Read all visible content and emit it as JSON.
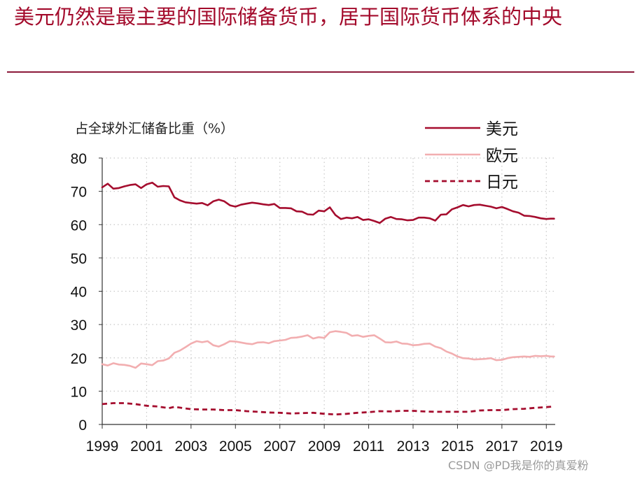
{
  "page": {
    "title": "美元仍然是最主要的国际储备货币，居于国际货币体系的中央",
    "watermark": "CSDN @PD我是你的真爱粉"
  },
  "chart_data": {
    "type": "line",
    "ylabel": "占全球外汇储备比重（%）",
    "ylim": [
      0,
      80
    ],
    "yticks": [
      0,
      10,
      20,
      30,
      40,
      50,
      60,
      70,
      80
    ],
    "xlim": [
      1999,
      2019.4
    ],
    "xticks": [
      "1999",
      "2001",
      "2003",
      "2005",
      "2007",
      "2009",
      "2011",
      "2013",
      "2015",
      "2017",
      "2019"
    ],
    "grid": true,
    "legend_position": "top-right",
    "series": [
      {
        "name": "美元",
        "color": "#a50d2e",
        "style": "solid",
        "points": [
          [
            1999.0,
            71.2
          ],
          [
            1999.25,
            72.3
          ],
          [
            1999.5,
            70.8
          ],
          [
            1999.75,
            71.0
          ],
          [
            2000.0,
            71.5
          ],
          [
            2000.25,
            71.9
          ],
          [
            2000.5,
            72.1
          ],
          [
            2000.75,
            71.0
          ],
          [
            2001.0,
            72.1
          ],
          [
            2001.25,
            72.6
          ],
          [
            2001.5,
            71.4
          ],
          [
            2001.75,
            71.6
          ],
          [
            2002.0,
            71.5
          ],
          [
            2002.25,
            68.2
          ],
          [
            2002.5,
            67.3
          ],
          [
            2002.75,
            66.7
          ],
          [
            2003.0,
            66.5
          ],
          [
            2003.25,
            66.3
          ],
          [
            2003.5,
            66.5
          ],
          [
            2003.75,
            65.8
          ],
          [
            2004.0,
            67.0
          ],
          [
            2004.25,
            67.5
          ],
          [
            2004.5,
            67.0
          ],
          [
            2004.75,
            65.8
          ],
          [
            2005.0,
            65.4
          ],
          [
            2005.25,
            66.0
          ],
          [
            2005.5,
            66.3
          ],
          [
            2005.75,
            66.6
          ],
          [
            2006.0,
            66.4
          ],
          [
            2006.25,
            66.1
          ],
          [
            2006.5,
            65.9
          ],
          [
            2006.75,
            66.2
          ],
          [
            2007.0,
            65.0
          ],
          [
            2007.25,
            65.0
          ],
          [
            2007.5,
            64.9
          ],
          [
            2007.75,
            64.0
          ],
          [
            2008.0,
            63.9
          ],
          [
            2008.25,
            63.1
          ],
          [
            2008.5,
            63.0
          ],
          [
            2008.75,
            64.2
          ],
          [
            2009.0,
            64.0
          ],
          [
            2009.25,
            65.2
          ],
          [
            2009.5,
            62.9
          ],
          [
            2009.75,
            61.7
          ],
          [
            2010.0,
            62.1
          ],
          [
            2010.25,
            61.9
          ],
          [
            2010.5,
            62.3
          ],
          [
            2010.75,
            61.4
          ],
          [
            2011.0,
            61.6
          ],
          [
            2011.25,
            61.1
          ],
          [
            2011.5,
            60.5
          ],
          [
            2011.75,
            61.8
          ],
          [
            2012.0,
            62.3
          ],
          [
            2012.25,
            61.7
          ],
          [
            2012.5,
            61.6
          ],
          [
            2012.75,
            61.3
          ],
          [
            2013.0,
            61.4
          ],
          [
            2013.25,
            62.1
          ],
          [
            2013.5,
            62.1
          ],
          [
            2013.75,
            61.9
          ],
          [
            2014.0,
            61.2
          ],
          [
            2014.25,
            63.0
          ],
          [
            2014.5,
            63.1
          ],
          [
            2014.75,
            64.6
          ],
          [
            2015.0,
            65.2
          ],
          [
            2015.25,
            65.9
          ],
          [
            2015.5,
            65.5
          ],
          [
            2015.75,
            65.9
          ],
          [
            2016.0,
            66.0
          ],
          [
            2016.25,
            65.7
          ],
          [
            2016.5,
            65.4
          ],
          [
            2016.75,
            64.9
          ],
          [
            2017.0,
            65.3
          ],
          [
            2017.25,
            64.7
          ],
          [
            2017.5,
            64.0
          ],
          [
            2017.75,
            63.6
          ],
          [
            2018.0,
            62.7
          ],
          [
            2018.25,
            62.6
          ],
          [
            2018.5,
            62.3
          ],
          [
            2018.75,
            61.9
          ],
          [
            2019.0,
            61.7
          ],
          [
            2019.2,
            61.8
          ],
          [
            2019.35,
            61.8
          ]
        ]
      },
      {
        "name": "欧元",
        "color": "#f2aeb0",
        "style": "solid",
        "points": [
          [
            1999.0,
            18.1
          ],
          [
            1999.25,
            17.7
          ],
          [
            1999.5,
            18.4
          ],
          [
            1999.75,
            18.0
          ],
          [
            2000.0,
            17.9
          ],
          [
            2000.25,
            17.6
          ],
          [
            2000.5,
            17.0
          ],
          [
            2000.75,
            18.3
          ],
          [
            2001.0,
            18.1
          ],
          [
            2001.25,
            17.8
          ],
          [
            2001.5,
            19.0
          ],
          [
            2001.75,
            19.2
          ],
          [
            2002.0,
            19.8
          ],
          [
            2002.25,
            21.5
          ],
          [
            2002.5,
            22.2
          ],
          [
            2002.75,
            23.2
          ],
          [
            2003.0,
            24.3
          ],
          [
            2003.25,
            25.0
          ],
          [
            2003.5,
            24.7
          ],
          [
            2003.75,
            25.0
          ],
          [
            2004.0,
            23.8
          ],
          [
            2004.25,
            23.4
          ],
          [
            2004.5,
            24.1
          ],
          [
            2004.75,
            25.0
          ],
          [
            2005.0,
            24.9
          ],
          [
            2005.25,
            24.6
          ],
          [
            2005.5,
            24.3
          ],
          [
            2005.75,
            24.1
          ],
          [
            2006.0,
            24.6
          ],
          [
            2006.25,
            24.7
          ],
          [
            2006.5,
            24.4
          ],
          [
            2006.75,
            25.0
          ],
          [
            2007.0,
            25.2
          ],
          [
            2007.25,
            25.4
          ],
          [
            2007.5,
            26.0
          ],
          [
            2007.75,
            26.1
          ],
          [
            2008.0,
            26.4
          ],
          [
            2008.25,
            26.8
          ],
          [
            2008.5,
            25.8
          ],
          [
            2008.75,
            26.2
          ],
          [
            2009.0,
            26.0
          ],
          [
            2009.25,
            27.7
          ],
          [
            2009.5,
            28.0
          ],
          [
            2009.75,
            27.8
          ],
          [
            2010.0,
            27.5
          ],
          [
            2010.25,
            26.6
          ],
          [
            2010.5,
            26.8
          ],
          [
            2010.75,
            26.3
          ],
          [
            2011.0,
            26.6
          ],
          [
            2011.25,
            26.8
          ],
          [
            2011.5,
            25.8
          ],
          [
            2011.75,
            24.7
          ],
          [
            2012.0,
            24.6
          ],
          [
            2012.25,
            24.9
          ],
          [
            2012.5,
            24.3
          ],
          [
            2012.75,
            24.2
          ],
          [
            2013.0,
            23.8
          ],
          [
            2013.25,
            23.9
          ],
          [
            2013.5,
            24.2
          ],
          [
            2013.75,
            24.3
          ],
          [
            2014.0,
            23.4
          ],
          [
            2014.25,
            22.9
          ],
          [
            2014.5,
            21.9
          ],
          [
            2014.75,
            21.3
          ],
          [
            2015.0,
            20.4
          ],
          [
            2015.25,
            19.9
          ],
          [
            2015.5,
            19.8
          ],
          [
            2015.75,
            19.5
          ],
          [
            2016.0,
            19.6
          ],
          [
            2016.25,
            19.7
          ],
          [
            2016.5,
            19.9
          ],
          [
            2016.75,
            19.3
          ],
          [
            2017.0,
            19.4
          ],
          [
            2017.25,
            19.9
          ],
          [
            2017.5,
            20.2
          ],
          [
            2017.75,
            20.3
          ],
          [
            2018.0,
            20.4
          ],
          [
            2018.25,
            20.3
          ],
          [
            2018.5,
            20.6
          ],
          [
            2018.75,
            20.5
          ],
          [
            2019.0,
            20.6
          ],
          [
            2019.2,
            20.4
          ],
          [
            2019.35,
            20.4
          ]
        ]
      },
      {
        "name": "日元",
        "color": "#a50d2e",
        "style": "dashed",
        "points": [
          [
            1999.0,
            6.1
          ],
          [
            1999.5,
            6.4
          ],
          [
            2000.0,
            6.4
          ],
          [
            2000.5,
            6.1
          ],
          [
            2001.0,
            5.6
          ],
          [
            2001.5,
            5.4
          ],
          [
            2002.0,
            4.9
          ],
          [
            2002.25,
            5.3
          ],
          [
            2002.75,
            4.8
          ],
          [
            2003.0,
            4.6
          ],
          [
            2003.5,
            4.5
          ],
          [
            2004.0,
            4.5
          ],
          [
            2004.5,
            4.3
          ],
          [
            2005.0,
            4.3
          ],
          [
            2005.5,
            4.0
          ],
          [
            2006.0,
            3.8
          ],
          [
            2006.5,
            3.6
          ],
          [
            2007.0,
            3.5
          ],
          [
            2007.5,
            3.3
          ],
          [
            2008.0,
            3.4
          ],
          [
            2008.5,
            3.5
          ],
          [
            2009.0,
            3.2
          ],
          [
            2009.5,
            3.0
          ],
          [
            2010.0,
            3.2
          ],
          [
            2010.5,
            3.5
          ],
          [
            2011.0,
            3.7
          ],
          [
            2011.5,
            4.0
          ],
          [
            2012.0,
            3.9
          ],
          [
            2012.5,
            4.1
          ],
          [
            2013.0,
            4.1
          ],
          [
            2013.5,
            3.9
          ],
          [
            2014.0,
            3.8
          ],
          [
            2014.5,
            3.8
          ],
          [
            2015.0,
            3.8
          ],
          [
            2015.5,
            3.8
          ],
          [
            2016.0,
            4.2
          ],
          [
            2016.5,
            4.3
          ],
          [
            2017.0,
            4.3
          ],
          [
            2017.5,
            4.6
          ],
          [
            2018.0,
            4.7
          ],
          [
            2018.5,
            5.0
          ],
          [
            2019.0,
            5.2
          ],
          [
            2019.35,
            5.4
          ]
        ]
      }
    ]
  }
}
